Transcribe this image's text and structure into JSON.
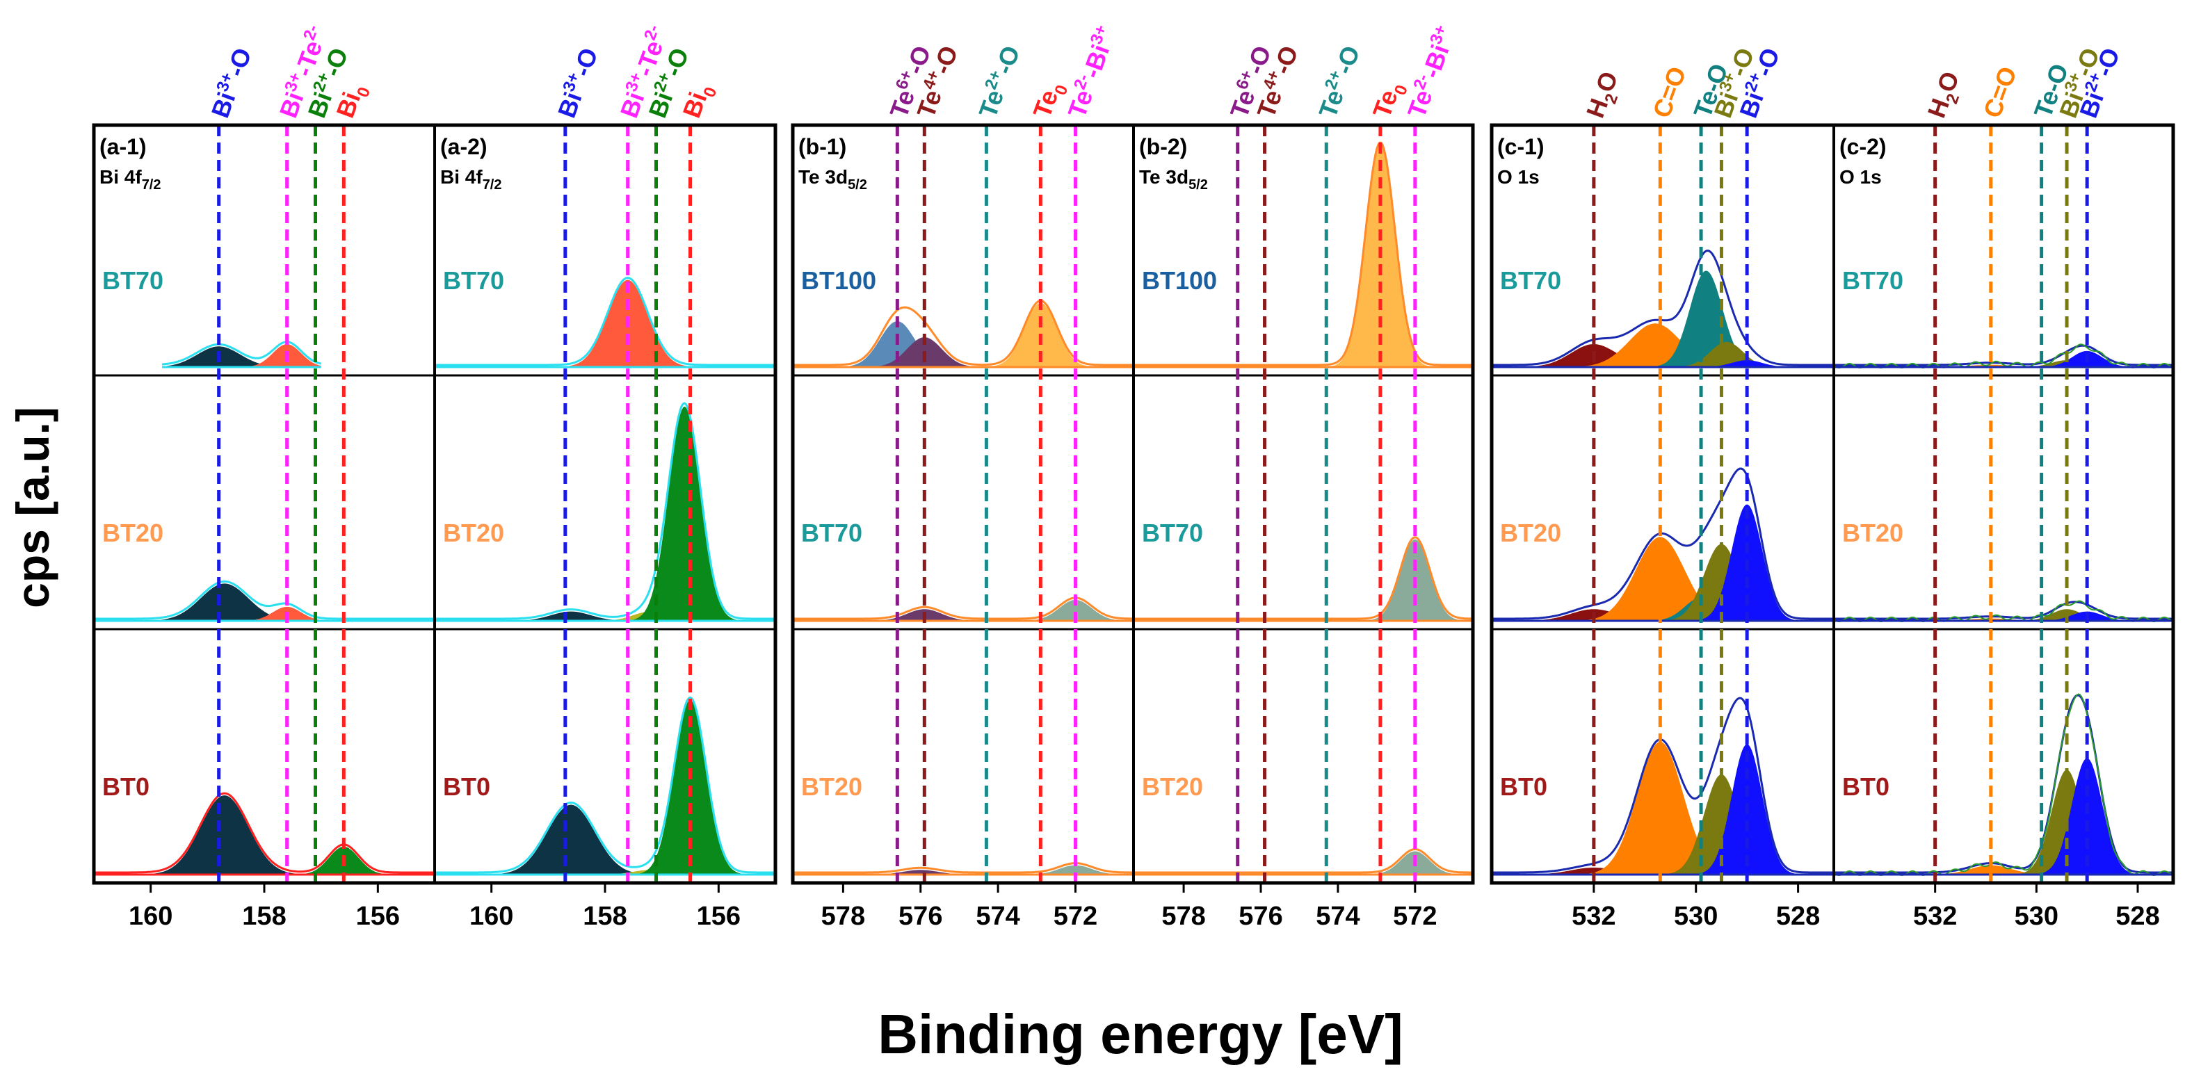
{
  "figure": {
    "ylabel": "cps [a.u.]",
    "xlabel": "Binding energy [eV]"
  },
  "colors": {
    "Bi3+-O": "#1a1ae6",
    "Bi3+-Te2-": "#ff22ff",
    "Bi2+-O": "#0a800a",
    "Bi0": "#ff2020",
    "Te6+-O": "#8a1a8a",
    "Te4+-O": "#8b1a1a",
    "Te2+-O": "#1a8a8a",
    "Te0": "#ff2020",
    "Te2--Bi3+": "#ff22ff",
    "H2O": "#8b1a1a",
    "C=O": "#ff8000",
    "Te-O": "#108080",
    "Bi3+-O(olive)": "#7a7a10",
    "Bi2+-O(blue)": "#1a1ae6",
    "BT70": "#1a9a9a",
    "BT100": "#1a5fa0",
    "BT20": "#ff9a50",
    "BT0": "#a01a1a",
    "navy": "#0d3345",
    "coral": "#ff5a3c",
    "green": "#0a8a1a",
    "orange": "#ff8000",
    "teal": "#108080",
    "olive": "#7a7a10",
    "blue": "#1010ff",
    "maroon": "#8b1010",
    "gold": "#ffb84a",
    "purple": "#6a3a6a",
    "steel": "#5a8ab8",
    "sage": "#8aab9a",
    "env_cyan": "#2ae0f0",
    "env_orange": "#ff8a2a",
    "env_blue": "#1a2ab0",
    "env_green": "#2a9a2a"
  },
  "chart_data": [
    {
      "id": "a-1",
      "type": "line",
      "panel_label": "(a-1)",
      "core_level": "Bi 4f",
      "core_sub": "7/2",
      "xlim": [
        161,
        155
      ],
      "ticks": [
        160,
        158,
        156
      ],
      "markers": [
        {
          "label": "Bi",
          "sup": "3+",
          "suffix": "-O",
          "x": 158.8,
          "color": "#1a1ae6"
        },
        {
          "label": "Bi",
          "sup": "3+",
          "suffix": "-Te",
          "sup2": "2-",
          "x": 157.6,
          "color": "#ff22ff"
        },
        {
          "label": "Bi",
          "sup": "2+",
          "suffix": "-O",
          "x": 157.1,
          "color": "#0a800a"
        },
        {
          "label": "Bi",
          "sub": "0",
          "x": 156.6,
          "color": "#ff2020"
        }
      ],
      "rows": [
        {
          "sample": "BT70",
          "color": "#1a9a9a",
          "envelope_color": "#2ae0f0",
          "x_from": 159.8,
          "x_to": 157.0,
          "peaks": [
            {
              "c": 158.8,
              "w": 0.38,
              "h": 0.09,
              "color": "#0d3345"
            },
            {
              "c": 157.6,
              "w": 0.25,
              "h": 0.1,
              "color": "#ff5a3c"
            }
          ]
        },
        {
          "sample": "BT20",
          "color": "#ff9a50",
          "envelope_color": "#2ae0f0",
          "x_from": 161,
          "x_to": 155,
          "peaks": [
            {
              "c": 158.7,
              "w": 0.42,
              "h": 0.16,
              "color": "#0d3345"
            },
            {
              "c": 157.6,
              "w": 0.25,
              "h": 0.06,
              "color": "#ff5a3c"
            }
          ]
        },
        {
          "sample": "BT0",
          "color": "#a01a1a",
          "envelope_color": "#ff2020",
          "x_from": 161,
          "x_to": 155,
          "peaks": [
            {
              "c": 158.7,
              "w": 0.42,
              "h": 0.34,
              "color": "#0d3345"
            },
            {
              "c": 156.6,
              "w": 0.26,
              "h": 0.12,
              "color": "#0a8a1a"
            }
          ]
        }
      ]
    },
    {
      "id": "a-2",
      "type": "line",
      "panel_label": "(a-2)",
      "core_level": "Bi 4f",
      "core_sub": "7/2",
      "xlim": [
        161,
        155
      ],
      "ticks": [
        160,
        158,
        156
      ],
      "markers": [
        {
          "label": "Bi",
          "sup": "3+",
          "suffix": "-O",
          "x": 158.7,
          "color": "#1a1ae6"
        },
        {
          "label": "Bi",
          "sup": "3+",
          "suffix": "-Te",
          "sup2": "2-",
          "x": 157.6,
          "color": "#ff22ff"
        },
        {
          "label": "Bi",
          "sup": "2+",
          "suffix": "-O",
          "x": 157.1,
          "color": "#0a800a"
        },
        {
          "label": "Bi",
          "sub": "0",
          "x": 156.5,
          "color": "#ff2020"
        }
      ],
      "rows": [
        {
          "sample": "BT70",
          "color": "#1a9a9a",
          "envelope_color": "#2ae0f0",
          "x_from": 161,
          "x_to": 155,
          "peaks": [
            {
              "c": 157.6,
              "w": 0.35,
              "h": 0.38,
              "color": "#ff5a3c"
            }
          ]
        },
        {
          "sample": "BT20",
          "color": "#ff9a50",
          "envelope_color": "#2ae0f0",
          "x_from": 161,
          "x_to": 155,
          "peaks": [
            {
              "c": 158.6,
              "w": 0.35,
              "h": 0.04,
              "color": "#0d3345"
            },
            {
              "c": 157.2,
              "w": 0.3,
              "h": 0.04,
              "color": "#b8b820"
            },
            {
              "c": 156.6,
              "w": 0.28,
              "h": 0.92,
              "color": "#0a8a1a"
            }
          ]
        },
        {
          "sample": "BT0",
          "color": "#a01a1a",
          "envelope_color": "#2ae0f0",
          "x_from": 161,
          "x_to": 155,
          "peaks": [
            {
              "c": 158.6,
              "w": 0.42,
              "h": 0.3,
              "color": "#0d3345"
            },
            {
              "c": 157.2,
              "w": 0.3,
              "h": 0.02,
              "color": "#b8b820"
            },
            {
              "c": 156.5,
              "w": 0.28,
              "h": 0.75,
              "color": "#0a8a1a"
            }
          ]
        }
      ]
    },
    {
      "id": "b-1",
      "type": "line",
      "panel_label": "(b-1)",
      "core_level": "Te 3d",
      "core_sub": "5/2",
      "xlim": [
        579.3,
        570.5
      ],
      "ticks": [
        578,
        576,
        574,
        572
      ],
      "markers": [
        {
          "label": "Te",
          "sup": "6+",
          "suffix": "-O",
          "x": 576.6,
          "color": "#8a1a8a"
        },
        {
          "label": "Te",
          "sup": "4+",
          "suffix": "-O",
          "x": 575.9,
          "color": "#8b1a1a"
        },
        {
          "label": "Te",
          "sup": "2+",
          "suffix": "-O",
          "x": 574.3,
          "color": "#1a8a8a"
        },
        {
          "label": "Te",
          "sub": "0",
          "x": 572.9,
          "color": "#ff2020"
        },
        {
          "label": "Te",
          "sup": "2-",
          "suffix": "-Bi",
          "sup2": "3+",
          "x": 572.0,
          "color": "#ff22ff"
        }
      ],
      "rows": [
        {
          "sample": "BT100",
          "color": "#1a5fa0",
          "envelope_color": "#ff8a2a",
          "x_from": 579.3,
          "x_to": 570.5,
          "peaks": [
            {
              "c": 576.6,
              "w": 0.45,
              "h": 0.2,
              "color": "#5a8ab8"
            },
            {
              "c": 575.9,
              "w": 0.45,
              "h": 0.13,
              "color": "#6a3a6a"
            },
            {
              "c": 572.9,
              "w": 0.42,
              "h": 0.28,
              "color": "#ffb84a"
            }
          ]
        },
        {
          "sample": "BT70",
          "color": "#1a9a9a",
          "envelope_color": "#ff8a2a",
          "x_from": 579.3,
          "x_to": 570.5,
          "peaks": [
            {
              "c": 575.9,
              "w": 0.45,
              "h": 0.05,
              "color": "#6a3a6a"
            },
            {
              "c": 572.0,
              "w": 0.42,
              "h": 0.09,
              "color": "#8aab9a"
            }
          ]
        },
        {
          "sample": "BT20",
          "color": "#ff9a50",
          "envelope_color": "#ff8a2a",
          "x_from": 579.3,
          "x_to": 570.5,
          "peaks": [
            {
              "c": 576.0,
              "w": 0.45,
              "h": 0.02,
              "color": "#6a3a6a"
            },
            {
              "c": 572.0,
              "w": 0.42,
              "h": 0.04,
              "color": "#8aab9a"
            }
          ]
        }
      ]
    },
    {
      "id": "b-2",
      "type": "line",
      "panel_label": "(b-2)",
      "core_level": "Te 3d",
      "core_sub": "5/2",
      "xlim": [
        579.3,
        570.5
      ],
      "ticks": [
        578,
        576,
        574,
        572
      ],
      "markers": [
        {
          "label": "Te",
          "sup": "6+",
          "suffix": "-O",
          "x": 576.6,
          "color": "#8a1a8a"
        },
        {
          "label": "Te",
          "sup": "4+",
          "suffix": "-O",
          "x": 575.9,
          "color": "#8b1a1a"
        },
        {
          "label": "Te",
          "sup": "2+",
          "suffix": "-O",
          "x": 574.3,
          "color": "#1a8a8a"
        },
        {
          "label": "Te",
          "sub": "0",
          "x": 572.9,
          "color": "#ff2020"
        },
        {
          "label": "Te",
          "sup": "2-",
          "suffix": "-Bi",
          "sup2": "3+",
          "x": 572.0,
          "color": "#ff22ff"
        }
      ],
      "rows": [
        {
          "sample": "BT100",
          "color": "#1a5fa0",
          "envelope_color": "#ff8a2a",
          "x_from": 579.3,
          "x_to": 570.5,
          "peaks": [
            {
              "c": 572.9,
              "w": 0.38,
              "h": 0.97,
              "color": "#ffb84a"
            }
          ]
        },
        {
          "sample": "BT70",
          "color": "#1a9a9a",
          "envelope_color": "#ff8a2a",
          "x_from": 579.3,
          "x_to": 570.5,
          "peaks": [
            {
              "c": 572.0,
              "w": 0.38,
              "h": 0.35,
              "color": "#8aab9a"
            }
          ]
        },
        {
          "sample": "BT20",
          "color": "#ff9a50",
          "envelope_color": "#ff8a2a",
          "x_from": 579.3,
          "x_to": 570.5,
          "peaks": [
            {
              "c": 572.0,
              "w": 0.38,
              "h": 0.1,
              "color": "#8aab9a"
            }
          ]
        }
      ]
    },
    {
      "id": "c-1",
      "type": "line",
      "panel_label": "(c-1)",
      "core_level": "O 1s",
      "core_sub": "",
      "xlim": [
        534.0,
        527.3
      ],
      "ticks": [
        532,
        530,
        528
      ],
      "markers": [
        {
          "label": "H",
          "sub": "2",
          "suffix": "O",
          "x": 532.0,
          "color": "#8b1a1a"
        },
        {
          "label": "C=O",
          "x": 530.7,
          "color": "#ff8000"
        },
        {
          "label": "Te-O",
          "x": 529.9,
          "color": "#108080"
        },
        {
          "label": "Bi",
          "sup": "3+",
          "suffix": "-O",
          "x": 529.5,
          "color": "#7a7a10"
        },
        {
          "label": "Bi",
          "sup": "2+",
          "suffix": "-O",
          "x": 529.0,
          "color": "#1a1ae6"
        }
      ],
      "rows": [
        {
          "sample": "BT70",
          "color": "#1a9a9a",
          "envelope_color": "#1a2ab0",
          "x_from": 534.0,
          "x_to": 527.3,
          "peaks": [
            {
              "c": 532.0,
              "w": 0.45,
              "h": 0.1,
              "color": "#8b1010"
            },
            {
              "c": 530.8,
              "w": 0.5,
              "h": 0.19,
              "color": "#ff8000"
            },
            {
              "c": 529.8,
              "w": 0.32,
              "h": 0.42,
              "color": "#108080"
            },
            {
              "c": 529.4,
              "w": 0.32,
              "h": 0.11,
              "color": "#7a7a10"
            },
            {
              "c": 529.0,
              "w": 0.3,
              "h": 0.03,
              "color": "#1010ff"
            }
          ]
        },
        {
          "sample": "BT20",
          "color": "#ff9a50",
          "envelope_color": "#1a2ab0",
          "x_from": 534.0,
          "x_to": 527.3,
          "peaks": [
            {
              "c": 532.0,
              "w": 0.45,
              "h": 0.05,
              "color": "#8b1010"
            },
            {
              "c": 530.7,
              "w": 0.48,
              "h": 0.36,
              "color": "#ff8000"
            },
            {
              "c": 529.9,
              "w": 0.32,
              "h": 0.1,
              "color": "#108080"
            },
            {
              "c": 529.5,
              "w": 0.34,
              "h": 0.33,
              "color": "#7a7a10"
            },
            {
              "c": 529.0,
              "w": 0.3,
              "h": 0.5,
              "color": "#1010ff"
            }
          ]
        },
        {
          "sample": "BT0",
          "color": "#a01a1a",
          "envelope_color": "#1a2ab0",
          "x_from": 534.0,
          "x_to": 527.3,
          "peaks": [
            {
              "c": 532.0,
              "w": 0.45,
              "h": 0.03,
              "color": "#8b1010"
            },
            {
              "c": 530.7,
              "w": 0.45,
              "h": 0.57,
              "color": "#ff8000"
            },
            {
              "c": 529.5,
              "w": 0.34,
              "h": 0.43,
              "color": "#7a7a10"
            },
            {
              "c": 529.0,
              "w": 0.3,
              "h": 0.56,
              "color": "#1010ff"
            }
          ]
        }
      ]
    },
    {
      "id": "c-2",
      "type": "line",
      "panel_label": "(c-2)",
      "core_level": "O 1s",
      "core_sub": "",
      "xlim": [
        534.0,
        527.3
      ],
      "ticks": [
        532,
        530,
        528
      ],
      "markers": [
        {
          "label": "H",
          "sub": "2",
          "suffix": "O",
          "x": 532.0,
          "color": "#8b1a1a"
        },
        {
          "label": "C=O",
          "x": 530.9,
          "color": "#ff8000"
        },
        {
          "label": "Te-O",
          "x": 529.9,
          "color": "#108080"
        },
        {
          "label": "Bi",
          "sup": "3+",
          "suffix": "-O",
          "x": 529.4,
          "color": "#7a7a10"
        },
        {
          "label": "Bi",
          "sup": "2+",
          "suffix": "-O",
          "x": 529.0,
          "color": "#1a1ae6"
        }
      ],
      "rows": [
        {
          "sample": "BT70",
          "color": "#1a9a9a",
          "envelope_color": "#1a2ab0",
          "noise_color": "#2a9a2a",
          "x_from": 534.0,
          "x_to": 527.3,
          "peaks": [
            {
              "c": 530.9,
              "w": 0.4,
              "h": 0.01,
              "color": "#ff8000"
            },
            {
              "c": 529.4,
              "w": 0.3,
              "h": 0.03,
              "color": "#7a7a10"
            },
            {
              "c": 529.0,
              "w": 0.3,
              "h": 0.07,
              "color": "#1010ff"
            }
          ]
        },
        {
          "sample": "BT20",
          "color": "#ff9a50",
          "envelope_color": "#1a2ab0",
          "noise_color": "#2a9a2a",
          "x_from": 534.0,
          "x_to": 527.3,
          "peaks": [
            {
              "c": 530.9,
              "w": 0.4,
              "h": 0.01,
              "color": "#ff8000"
            },
            {
              "c": 529.4,
              "w": 0.3,
              "h": 0.05,
              "color": "#7a7a10"
            },
            {
              "c": 529.0,
              "w": 0.3,
              "h": 0.04,
              "color": "#1010ff"
            }
          ]
        },
        {
          "sample": "BT0",
          "color": "#a01a1a",
          "envelope_color": "#1a2ab0",
          "noise_color": "#2a9a2a",
          "x_from": 534.0,
          "x_to": 527.3,
          "peaks": [
            {
              "c": 530.9,
              "w": 0.4,
              "h": 0.04,
              "color": "#ff8000"
            },
            {
              "c": 529.4,
              "w": 0.3,
              "h": 0.45,
              "color": "#7a7a10"
            },
            {
              "c": 529.0,
              "w": 0.3,
              "h": 0.5,
              "color": "#1010ff"
            }
          ]
        }
      ]
    }
  ]
}
